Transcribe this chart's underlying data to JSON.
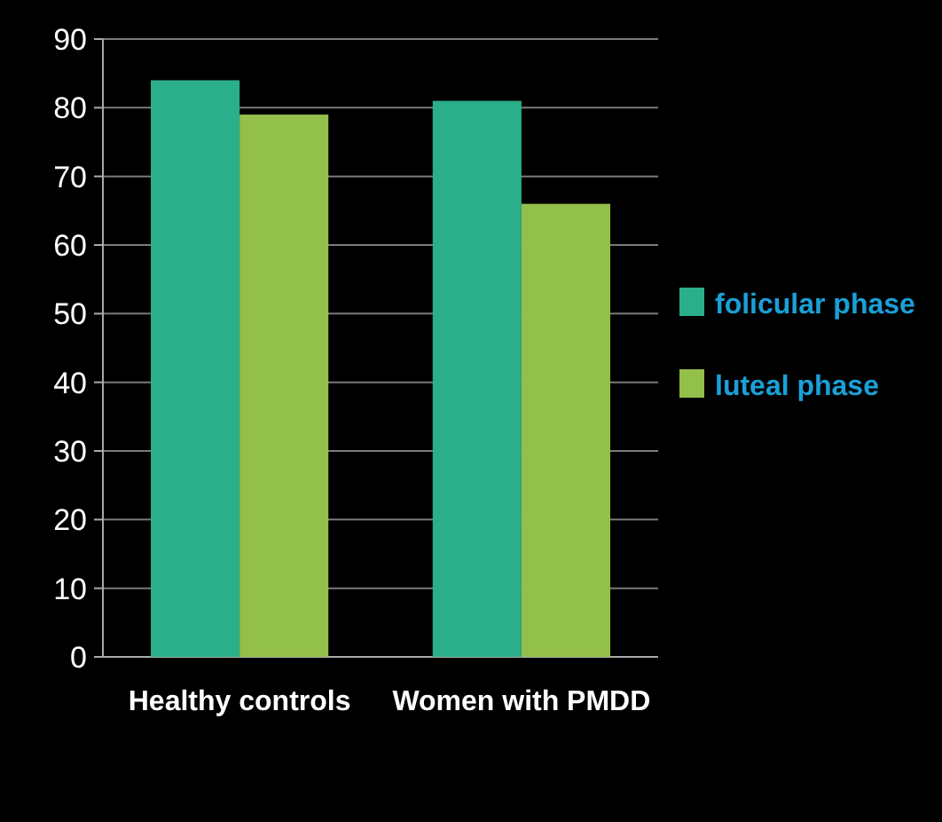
{
  "chart_data": {
    "type": "bar",
    "categories": [
      "Healthy controls",
      "Women with PMDD"
    ],
    "series": [
      {
        "name": "folicular phase",
        "color": "#2bae8a",
        "values": [
          84,
          81
        ]
      },
      {
        "name": "luteal phase",
        "color": "#93bf4b",
        "values": [
          79,
          66
        ]
      }
    ],
    "ylim": [
      0,
      90
    ],
    "yticks": [
      0,
      10,
      20,
      30,
      40,
      50,
      60,
      70,
      80,
      90
    ],
    "grid": "y",
    "legend": "right"
  }
}
